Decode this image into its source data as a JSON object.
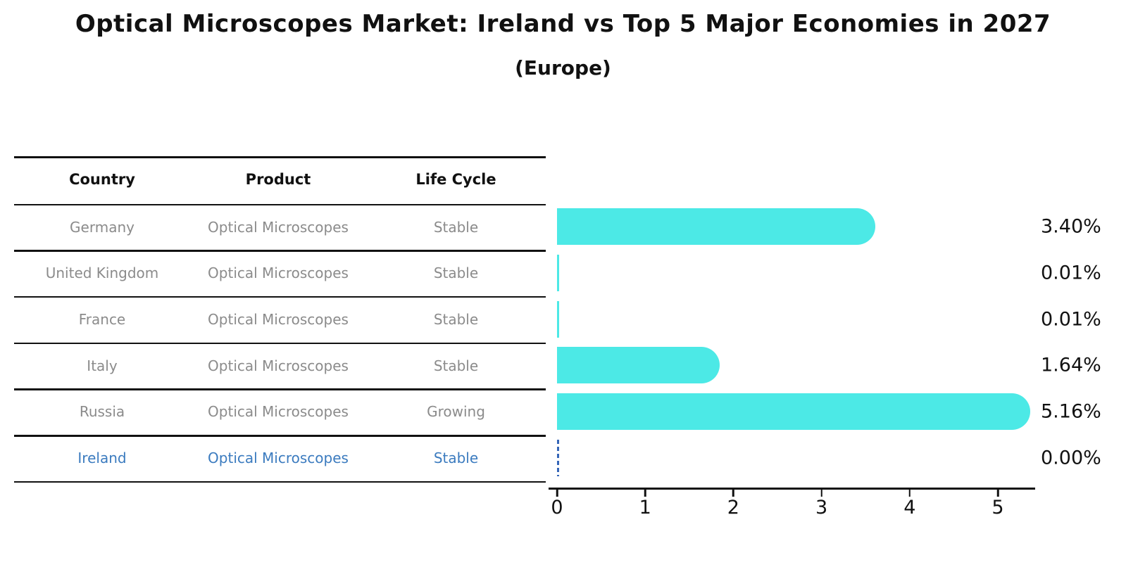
{
  "title": "Optical Microscopes Market: Ireland vs Top 5 Major Economies in 2027",
  "subtitle": "(Europe)",
  "table": {
    "columns": [
      "Country",
      "Product",
      "Life Cycle"
    ],
    "rows": [
      {
        "country": "Germany",
        "product": "Optical Microscopes",
        "life_cycle": "Stable",
        "share_label": "3.40%",
        "highlight": false
      },
      {
        "country": "United Kingdom",
        "product": "Optical Microscopes",
        "life_cycle": "Stable",
        "share_label": "0.01%",
        "highlight": false
      },
      {
        "country": "France",
        "product": "Optical Microscopes",
        "life_cycle": "Stable",
        "share_label": "0.01%",
        "highlight": false
      },
      {
        "country": "Italy",
        "product": "Optical Microscopes",
        "life_cycle": "Stable",
        "share_label": "1.64%",
        "highlight": false
      },
      {
        "country": "Russia",
        "product": "Optical Microscopes",
        "life_cycle": "Growing",
        "share_label": "5.16%",
        "highlight": false
      },
      {
        "country": "Ireland",
        "product": "Optical Microscopes",
        "life_cycle": "Stable",
        "share_label": "0.00%",
        "highlight": true
      }
    ]
  },
  "chart_data": {
    "type": "bar",
    "orientation": "horizontal",
    "title": "Optical Microscopes Market: Ireland vs Top 5 Major Economies in 2027 (Europe)",
    "categories": [
      "Germany",
      "United Kingdom",
      "France",
      "Italy",
      "Russia",
      "Ireland"
    ],
    "values": [
      3.4,
      0.01,
      0.01,
      1.64,
      5.16,
      0.0
    ],
    "value_labels": [
      "3.40%",
      "0.01%",
      "0.01%",
      "1.64%",
      "5.16%",
      "0.00%"
    ],
    "xlabel": "",
    "ylabel": "",
    "xlim": [
      0,
      5.44
    ],
    "x_ticks": [
      0,
      1,
      2,
      3,
      4,
      5
    ],
    "grid": false,
    "legend": "none",
    "bar_style": "rounded-right-cap",
    "zero_value_style": "dashed-outline"
  },
  "colors": {
    "bar": "#4CE9E6",
    "highlight_text": "#3B7BBF",
    "zero_dash": "#3566B8",
    "table_text": "#8B8B8B",
    "header_text": "#111111",
    "axis": "#111111",
    "background": "#FFFFFF"
  }
}
